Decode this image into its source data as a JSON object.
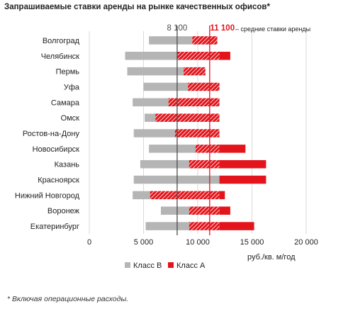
{
  "title": "Запрашиваемые ставки аренды на рынке качественных офисов*",
  "footnote": "* Включая операционные расходы.",
  "colors": {
    "class_b": "#b5b5b5",
    "class_a": "#e3141b",
    "avg_b_line": "#4d4d4d",
    "avg_a_line": "#e3141b"
  },
  "chart_data": {
    "type": "bar",
    "orientation": "horizontal",
    "unit_label": "руб./кв. м/год",
    "xlim": [
      0,
      20000
    ],
    "x_ticks": [
      0,
      5000,
      10000,
      15000,
      20000
    ],
    "x_tick_labels": [
      "0",
      "5 000",
      "10 000",
      "15 000",
      "20 000"
    ],
    "categories": [
      "Волгоград",
      "Челябинск",
      "Пермь",
      "Уфа",
      "Самара",
      "Омск",
      "Ростов-на-Дону",
      "Новосибирск",
      "Казань",
      "Красноярск",
      "Нижний Новгород",
      "Воронеж",
      "Екатеринбург"
    ],
    "series": [
      {
        "name": "Класс В",
        "color": "#b5b5b5",
        "ranges": [
          [
            5500,
            9500
          ],
          [
            3300,
            8100
          ],
          [
            3500,
            8700
          ],
          [
            5000,
            9100
          ],
          [
            4000,
            7300
          ],
          [
            5100,
            6100
          ],
          [
            4100,
            7900
          ],
          [
            5500,
            9800
          ],
          [
            4700,
            9200
          ],
          [
            4100,
            12000
          ],
          [
            4000,
            5600
          ],
          [
            6600,
            9200
          ],
          [
            5200,
            9200
          ]
        ]
      },
      {
        "name": "Класс А",
        "color": "#e3141b",
        "ranges": [
          [
            9500,
            11800
          ],
          [
            8100,
            13000
          ],
          [
            8700,
            10700
          ],
          [
            9100,
            12000
          ],
          [
            7300,
            12000
          ],
          [
            6100,
            12000
          ],
          [
            7900,
            12000
          ],
          [
            9800,
            14400
          ],
          [
            9200,
            16300
          ],
          [
            12000,
            16300
          ],
          [
            5600,
            12500
          ],
          [
            9200,
            13000
          ],
          [
            9200,
            15200
          ]
        ]
      }
    ],
    "reference_lines": [
      {
        "label": "8 100",
        "value": 8100,
        "color": "#4d4d4d"
      },
      {
        "label": "11 100",
        "value": 11100,
        "color": "#e3141b"
      }
    ],
    "reference_caption": "– средние ставки аренды",
    "legend_position": "bottom",
    "grid": true
  }
}
